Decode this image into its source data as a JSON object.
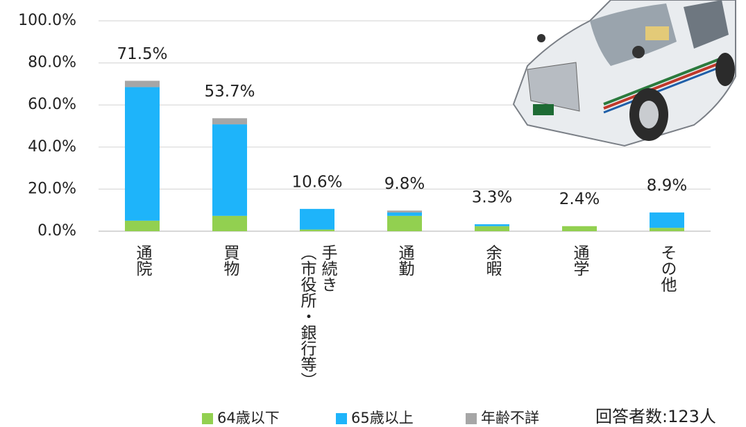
{
  "chart_data": {
    "type": "stacked-bar",
    "categories": [
      "通院",
      "買物",
      "手続き\n（市役所・銀行等）",
      "通勤",
      "余暇",
      "通学",
      "その他"
    ],
    "series": [
      {
        "name": "64歳以下",
        "color": "#92d050",
        "values": [
          5.0,
          7.3,
          0.8,
          7.3,
          2.4,
          2.4,
          1.6
        ]
      },
      {
        "name": "65歳以上",
        "color": "#1eb4fa",
        "values": [
          63.5,
          43.5,
          9.8,
          1.6,
          0.9,
          0,
          7.3
        ]
      },
      {
        "name": "年齢不詳",
        "color": "#a6a6a6",
        "values": [
          3.0,
          2.9,
          0,
          0.9,
          0,
          0,
          0
        ]
      }
    ],
    "totals": [
      71.5,
      53.7,
      10.6,
      9.8,
      3.3,
      2.4,
      8.9
    ],
    "total_labels": [
      "71.5%",
      "53.7%",
      "10.6%",
      "9.8%",
      "3.3%",
      "2.4%",
      "8.9%"
    ],
    "ylim": [
      0,
      100
    ],
    "yticks": [
      {
        "value": 0,
        "label": "0.0%"
      },
      {
        "value": 20,
        "label": "20.0%"
      },
      {
        "value": 40,
        "label": "40.0%"
      },
      {
        "value": 60,
        "label": "60.0%"
      },
      {
        "value": 80,
        "label": "80.0%"
      },
      {
        "value": 100,
        "label": "100.0%"
      }
    ],
    "grid": true,
    "annotation": "回答者数:123人"
  }
}
